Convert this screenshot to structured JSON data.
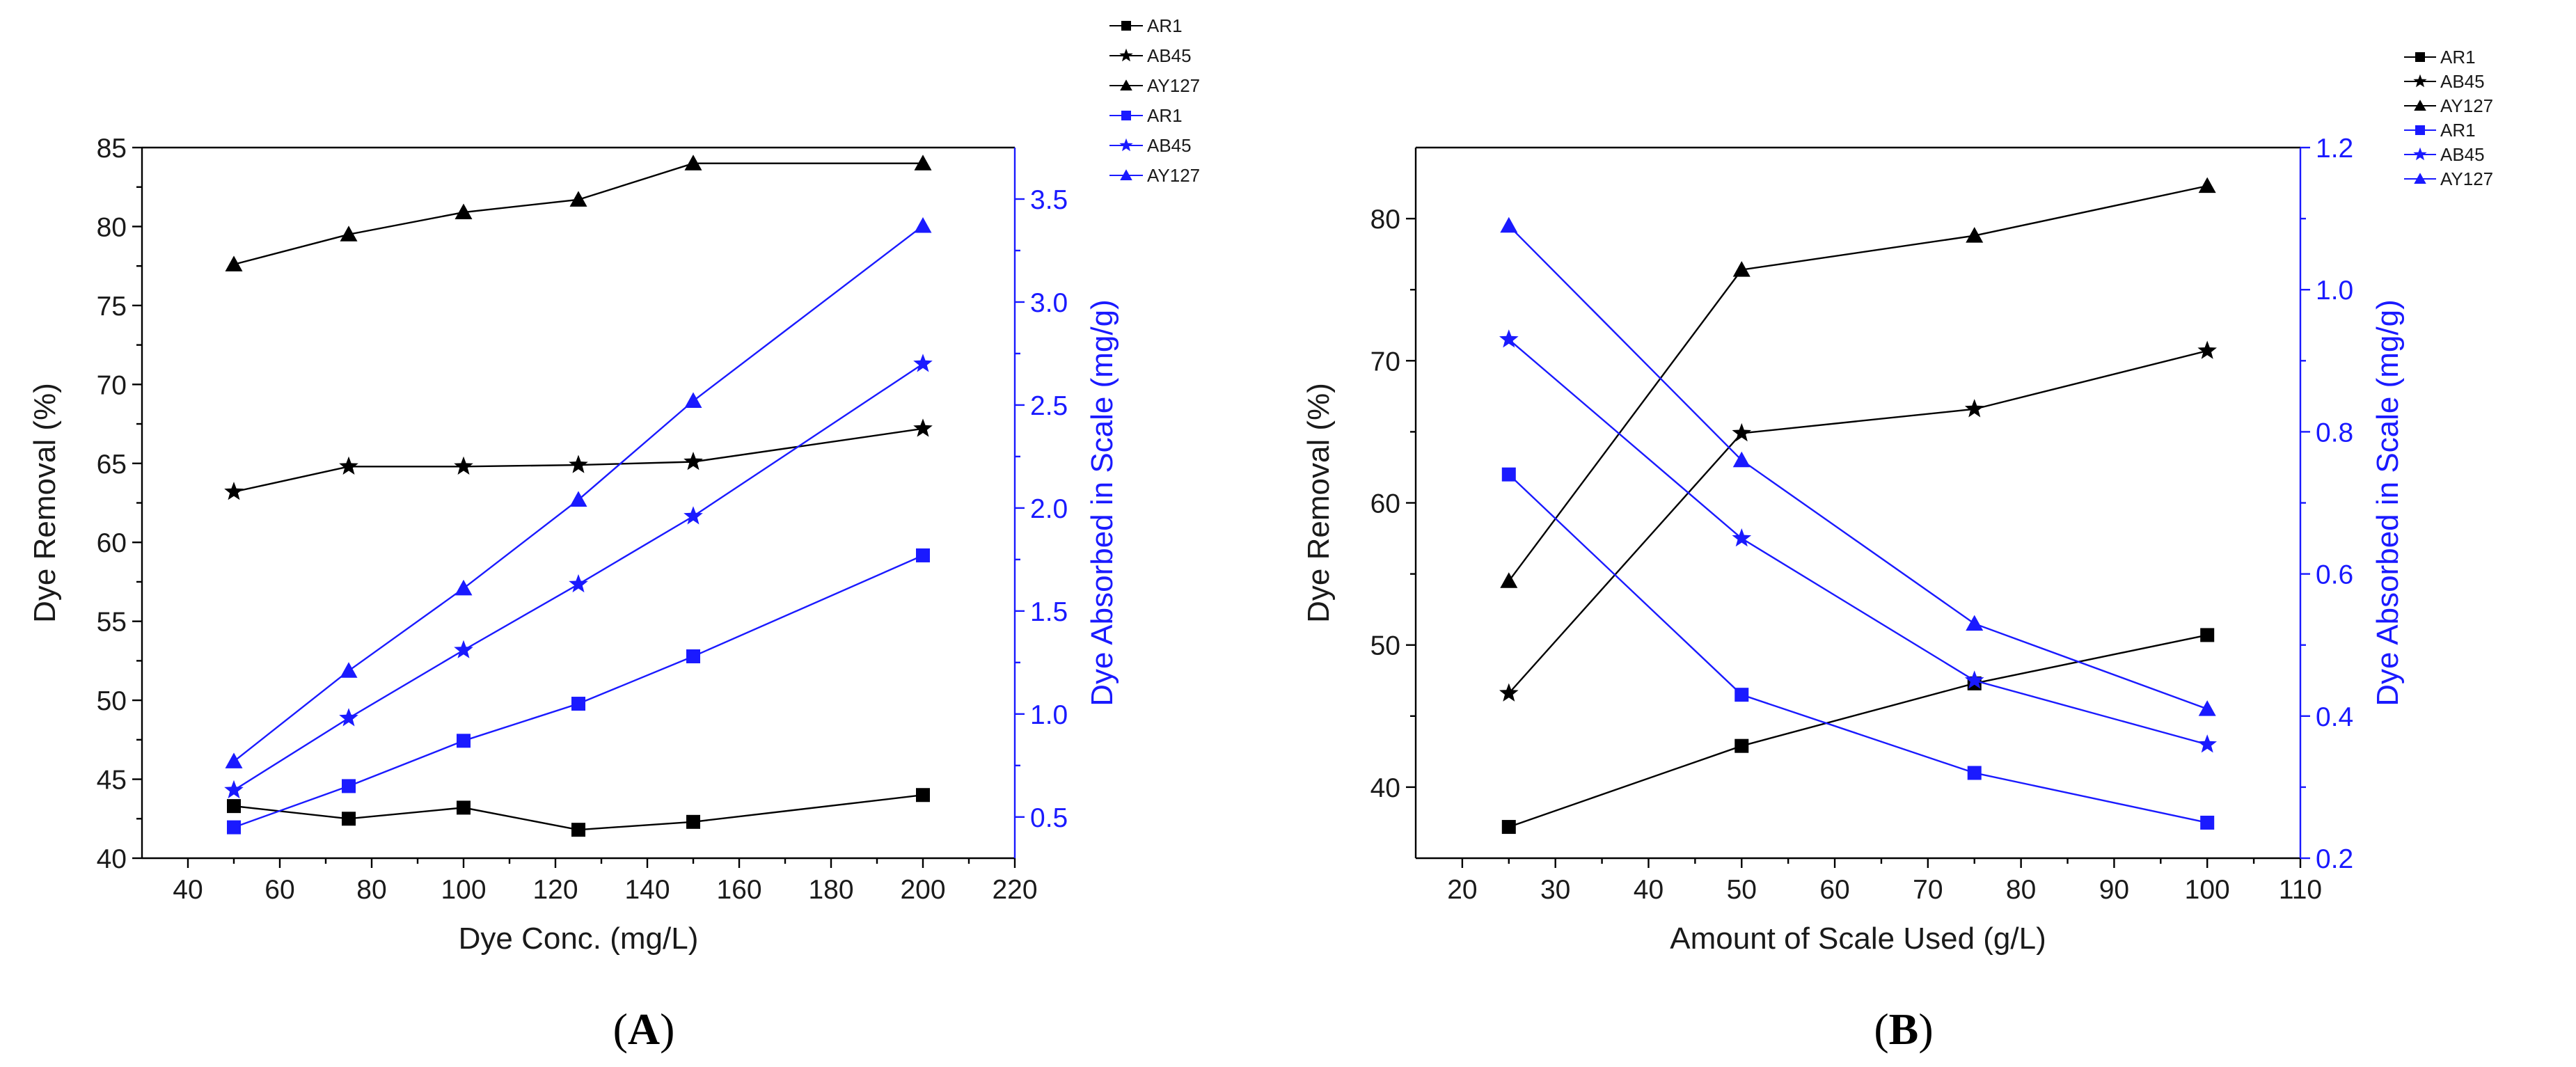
{
  "colors": {
    "left": "#000000",
    "right": "#1a1aff"
  },
  "chart_data": [
    {
      "type": "line",
      "panel_label": "A",
      "xlabel": "Dye Conc. (mg/L)",
      "ylabel_left": "Dye Removal (%)",
      "ylabel_right": "Dye Absorbed in Scale (mg/g)",
      "xlim": [
        30,
        220
      ],
      "ylim_left": [
        40,
        85
      ],
      "ylim_right": [
        0.3,
        3.75
      ],
      "x_ticks": [
        40,
        60,
        80,
        100,
        120,
        140,
        160,
        180,
        200,
        220
      ],
      "y_ticks_left": [
        40,
        45,
        50,
        55,
        60,
        65,
        70,
        75,
        80,
        85
      ],
      "y_ticks_right": [
        0.5,
        1.0,
        1.5,
        2.0,
        2.5,
        3.0,
        3.5
      ],
      "legend": [
        "AR1",
        "AB45",
        "AY127",
        "AR1",
        "AB45",
        "AY127"
      ],
      "series": [
        {
          "name": "AR1",
          "axis": "left",
          "marker": "square",
          "x": [
            50,
            75,
            100,
            125,
            150,
            200
          ],
          "values": [
            43.3,
            42.5,
            43.2,
            41.8,
            42.3,
            44.0
          ]
        },
        {
          "name": "AB45",
          "axis": "left",
          "marker": "star",
          "x": [
            50,
            75,
            100,
            125,
            150,
            200
          ],
          "values": [
            63.2,
            64.8,
            64.8,
            64.9,
            65.1,
            67.2
          ]
        },
        {
          "name": "AY127",
          "axis": "left",
          "marker": "triangle",
          "x": [
            50,
            75,
            100,
            125,
            150,
            200
          ],
          "values": [
            77.6,
            79.5,
            80.9,
            81.7,
            84.0,
            84.0
          ]
        },
        {
          "name": "AR1",
          "axis": "right",
          "marker": "square",
          "x": [
            50,
            75,
            100,
            125,
            150,
            200
          ],
          "values": [
            0.45,
            0.65,
            0.87,
            1.05,
            1.28,
            1.77
          ]
        },
        {
          "name": "AB45",
          "axis": "right",
          "marker": "star",
          "x": [
            50,
            75,
            100,
            125,
            150,
            200
          ],
          "values": [
            0.63,
            0.98,
            1.31,
            1.63,
            1.96,
            2.7
          ]
        },
        {
          "name": "AY127",
          "axis": "right",
          "marker": "triangle",
          "x": [
            50,
            75,
            100,
            125,
            150,
            200
          ],
          "values": [
            0.77,
            1.21,
            1.61,
            2.04,
            2.52,
            3.37
          ]
        }
      ]
    },
    {
      "type": "line",
      "panel_label": "B",
      "xlabel": "Amount of Scale Used (g/L)",
      "ylabel_left": "Dye Removal (%)",
      "ylabel_right": "Dye Absorbed in Scale (mg/g)",
      "xlim": [
        15,
        110
      ],
      "ylim_left": [
        35,
        85
      ],
      "ylim_right": [
        0.2,
        1.2
      ],
      "x_ticks": [
        20,
        30,
        40,
        50,
        60,
        70,
        80,
        90,
        100,
        110
      ],
      "y_ticks_left": [
        40,
        50,
        60,
        70,
        80
      ],
      "y_ticks_right": [
        0.2,
        0.4,
        0.6,
        0.8,
        1.0,
        1.2
      ],
      "legend": [
        "AR1",
        "AB45",
        "AY127",
        "AR1",
        "AB45",
        "AY127"
      ],
      "series": [
        {
          "name": "AR1",
          "axis": "left",
          "marker": "square",
          "x": [
            25,
            50,
            75,
            100
          ],
          "values": [
            37.2,
            42.9,
            47.3,
            50.7
          ]
        },
        {
          "name": "AB45",
          "axis": "left",
          "marker": "star",
          "x": [
            25,
            50,
            75,
            100
          ],
          "values": [
            46.6,
            64.9,
            66.6,
            70.7
          ]
        },
        {
          "name": "AY127",
          "axis": "left",
          "marker": "triangle",
          "x": [
            25,
            50,
            75,
            100
          ],
          "values": [
            54.5,
            76.4,
            78.8,
            82.3
          ]
        },
        {
          "name": "AR1",
          "axis": "right",
          "marker": "square",
          "x": [
            25,
            50,
            75,
            100
          ],
          "values": [
            0.74,
            0.43,
            0.32,
            0.25
          ]
        },
        {
          "name": "AB45",
          "axis": "right",
          "marker": "star",
          "x": [
            25,
            50,
            75,
            100
          ],
          "values": [
            0.93,
            0.65,
            0.45,
            0.36
          ]
        },
        {
          "name": "AY127",
          "axis": "right",
          "marker": "triangle",
          "x": [
            25,
            50,
            75,
            100
          ],
          "values": [
            1.09,
            0.76,
            0.53,
            0.41
          ]
        }
      ]
    }
  ]
}
